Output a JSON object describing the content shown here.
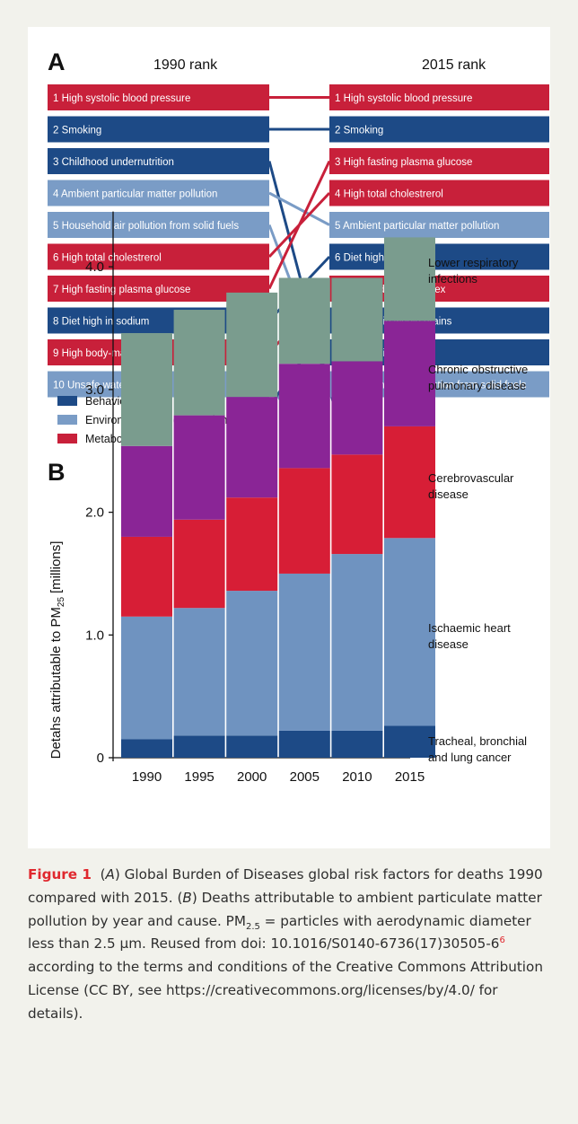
{
  "colors": {
    "behavioral": "#1d4a86",
    "environmental": "#7a9cc6",
    "metabolic": "#c8203a",
    "bar_cancer": "#1d4a86",
    "bar_ihd": "#6f93c0",
    "bar_cerebro": "#d71e36",
    "bar_copd": "#8a2596",
    "bar_lri": "#7a9c8e",
    "caption_label": "#e0282e"
  },
  "panel_a": {
    "letter": "A",
    "left_header": "1990 rank",
    "right_header": "2015 rank",
    "rank_1990": [
      {
        "label": "1 High systolic blood pressure",
        "category": "metabolic"
      },
      {
        "label": "2 Smoking",
        "category": "behavioral"
      },
      {
        "label": "3 Childhood undernutrition",
        "category": "behavioral"
      },
      {
        "label": "4 Ambient particular matter pollution",
        "category": "environmental"
      },
      {
        "label": "5 Household air pollution from solid fuels",
        "category": "environmental"
      },
      {
        "label": "6 High total cholestrerol",
        "category": "metabolic"
      },
      {
        "label": "7 High fasting plasma glucose",
        "category": "metabolic"
      },
      {
        "label": "8 Diet high in sodium",
        "category": "behavioral"
      },
      {
        "label": "9 High body-mass index",
        "category": "metabolic"
      },
      {
        "label": "10 Unsafe water source",
        "category": "environmental"
      }
    ],
    "rank_2015": [
      {
        "label": "1 High systolic blood pressure",
        "category": "metabolic"
      },
      {
        "label": "2 Smoking",
        "category": "behavioral"
      },
      {
        "label": "3 High fasting plasma glucose",
        "category": "metabolic"
      },
      {
        "label": "4 High total cholestrerol",
        "category": "metabolic"
      },
      {
        "label": "5 Ambient particular matter pollution",
        "category": "environmental"
      },
      {
        "label": "6 Diet high in sodium",
        "category": "behavioral"
      },
      {
        "label": "7 High body-mass index",
        "category": "metabolic"
      },
      {
        "label": "8 Diet low in whole grains",
        "category": "behavioral"
      },
      {
        "label": "9 Diet low in fruits",
        "category": "behavioral"
      },
      {
        "label": "10 Household air pollution from solid fuels",
        "category": "environmental"
      }
    ],
    "links": [
      {
        "from": 1,
        "to": 1
      },
      {
        "from": 2,
        "to": 2
      },
      {
        "from": 3,
        "to": null
      },
      {
        "from": 4,
        "to": 5
      },
      {
        "from": 5,
        "to": 10
      },
      {
        "from": 6,
        "to": 4
      },
      {
        "from": 7,
        "to": 3
      },
      {
        "from": 8,
        "to": 6
      },
      {
        "from": 9,
        "to": 7
      },
      {
        "from": 10,
        "to": null
      },
      {
        "from": null,
        "to": 8
      },
      {
        "from": null,
        "to": 9
      }
    ],
    "legend": [
      {
        "label": "Behavioral risks",
        "category": "behavioral"
      },
      {
        "label": "Environmental or occupational risks",
        "category": "environmental"
      },
      {
        "label": "Metabolic risks",
        "category": "metabolic"
      }
    ]
  },
  "panel_b": {
    "letter": "B",
    "ylabel_main": "Detahs attributable to PM",
    "ylabel_sub": "25",
    "ylabel_unit": "[millions]"
  },
  "chart_data": {
    "type": "bar",
    "stacked": true,
    "categories": [
      "1990",
      "1995",
      "2000",
      "2005",
      "2010",
      "2015"
    ],
    "series": [
      {
        "name": "Tracheal, bronchial and lung cancer",
        "lines": [
          "Tracheal, bronchial",
          "and lung cancer"
        ],
        "color_key": "bar_cancer",
        "values": [
          0.15,
          0.18,
          0.18,
          0.22,
          0.22,
          0.26
        ]
      },
      {
        "name": "Ischaemic heart disease",
        "lines": [
          "Ischaemic heart",
          "disease"
        ],
        "color_key": "bar_ihd",
        "values": [
          1.0,
          1.04,
          1.18,
          1.28,
          1.44,
          1.53
        ]
      },
      {
        "name": "Cerebrovascular disease",
        "lines": [
          "Cerebrovascular",
          "disease"
        ],
        "color_key": "bar_cerebro",
        "values": [
          0.65,
          0.72,
          0.76,
          0.86,
          0.81,
          0.91
        ]
      },
      {
        "name": "Chronic obstructive pulmonary disease",
        "lines": [
          "Chronic obstructive",
          "pulmonary disease"
        ],
        "color_key": "bar_copd",
        "values": [
          0.74,
          0.85,
          0.82,
          0.85,
          0.76,
          0.86
        ]
      },
      {
        "name": "Lower respiratory infections",
        "lines": [
          "Lower respiratory",
          "infections"
        ],
        "color_key": "bar_lri",
        "values": [
          0.92,
          0.86,
          0.85,
          0.7,
          0.68,
          0.68
        ]
      }
    ],
    "y_ticks": [
      "0",
      "1.0",
      "2.0",
      "3.0",
      "4.0"
    ],
    "ylim": [
      0,
      4.45
    ]
  },
  "caption": {
    "label": "Figure 1",
    "seg1": "(",
    "seg_a": "A",
    "seg2": ") Global Burden of Diseases global risk factors for deaths 1990 compared with 2015. (",
    "seg_b": "B",
    "seg3": ") Deaths attributable to ambient particulate matter pollution by year and cause. PM",
    "pm_sub": "2.5",
    "seg4": " = particles with aerodynamic diameter less than 2.5 μm. Reused from doi: 10.1016/S0140-6736(17)30505-6",
    "ref": "6",
    "seg5": " according to the terms and conditions of the Creative Commons Attribution License (CC BY, see https://creativecommons.org/licenses/by/4.0/ for details)."
  }
}
